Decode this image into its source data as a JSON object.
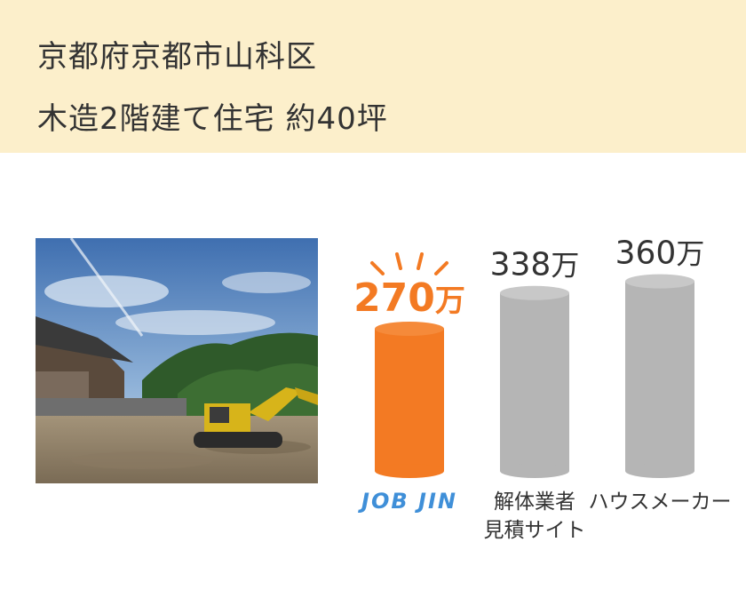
{
  "header": {
    "line1": "京都府京都市山科区",
    "line2": "木造2階建て住宅 約40坪"
  },
  "photo": {
    "name": "demolition-site-excavator"
  },
  "colors": {
    "accent": "#f37a23",
    "gray": "#b5b5b5",
    "header_bg": "#fcefcb",
    "logo": "#3f8fd8"
  },
  "chart_data": {
    "type": "bar",
    "categories": [
      "JOB JIN",
      "解体業者見積サイト",
      "ハウスメーカー"
    ],
    "category_lines": [
      [
        "JOB JIN"
      ],
      [
        "解体業者",
        "見積サイト"
      ],
      [
        "ハウスメーカー"
      ]
    ],
    "values": [
      270,
      338,
      360
    ],
    "value_labels": [
      "270",
      "338",
      "360"
    ],
    "unit": "万",
    "highlight_index": 0
  }
}
